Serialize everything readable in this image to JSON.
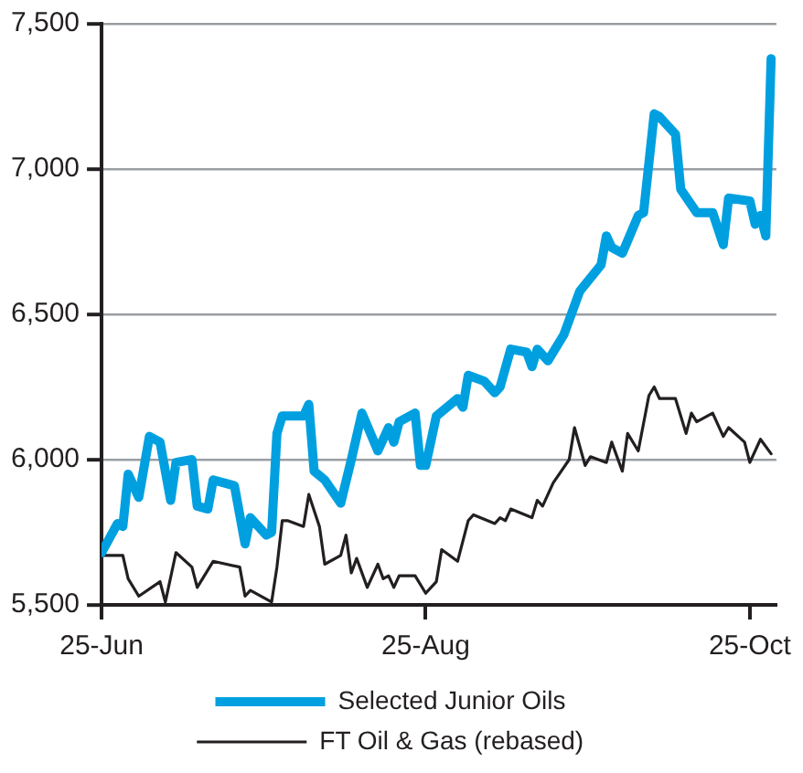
{
  "chart_data": {
    "type": "line",
    "x": [
      "--06-25",
      "--06-28",
      "--06-29",
      "--06-30",
      "--07-02",
      "--07-04",
      "--07-06",
      "--07-08",
      "--07-09",
      "--07-12",
      "--07-13",
      "--07-15",
      "--07-16",
      "--07-20",
      "--07-21",
      "--07-22",
      "--07-23",
      "--07-26",
      "--07-27",
      "--07-28",
      "--07-29",
      "--08-02",
      "--08-03",
      "--08-04",
      "--08-06",
      "--08-09",
      "--08-11",
      "--08-13",
      "--08-16",
      "--08-18",
      "--08-19",
      "--08-20",
      "--08-23",
      "--08-24",
      "--08-25",
      "--08-27",
      "--08-31",
      "--09-01",
      "--09-02",
      "--09-05",
      "--09-07",
      "--09-08",
      "--09-10",
      "--09-13",
      "--09-14",
      "--09-15",
      "--09-17",
      "--09-20",
      "--09-23",
      "--09-27",
      "--09-28",
      "--09-29",
      "--10-01",
      "--10-04",
      "--10-05",
      "--10-07",
      "--10-08",
      "--10-11",
      "--10-12",
      "--10-15",
      "--10-18",
      "--10-20",
      "--10-21",
      "--10-25",
      "--10-26",
      "--10-27",
      "--10-28",
      "--10-29"
    ],
    "series": [
      {
        "name": "Selected Junior Oils",
        "color": "#00a0e0",
        "values": [
          5680,
          5780,
          5770,
          5950,
          5870,
          6080,
          6060,
          5860,
          5990,
          6000,
          5840,
          5830,
          5930,
          5910,
          5810,
          5710,
          5800,
          5740,
          5750,
          6090,
          6150,
          6150,
          6190,
          5960,
          5930,
          5850,
          6000,
          6160,
          6030,
          6110,
          6060,
          6130,
          6160,
          5980,
          5980,
          6150,
          6210,
          6180,
          6290,
          6270,
          6230,
          6250,
          6380,
          6370,
          6320,
          6380,
          6340,
          6430,
          6580,
          6670,
          6770,
          6730,
          6710,
          6840,
          6850,
          7190,
          7180,
          7120,
          6930,
          6850,
          6850,
          6740,
          6900,
          6890,
          6810,
          6840,
          6770,
          7380
        ]
      },
      {
        "name": "FT Oil & Gas (rebased)",
        "color": "#231f20",
        "x": [
          "--06-25",
          "--06-29",
          "--06-30",
          "--07-02",
          "--07-06",
          "--07-07",
          "--07-09",
          "--07-12",
          "--07-13",
          "--07-16",
          "--07-21",
          "--07-22",
          "--07-23",
          "--07-27",
          "--07-28",
          "--07-29",
          "--07-30",
          "--08-02",
          "--08-03",
          "--08-05",
          "--08-06",
          "--08-09",
          "--08-10",
          "--08-11",
          "--08-12",
          "--08-14",
          "--08-16",
          "--08-17",
          "--08-18",
          "--08-19",
          "--08-20",
          "--08-23",
          "--08-25",
          "--08-27",
          "--08-28",
          "--08-31",
          "--09-02",
          "--09-03",
          "--09-07",
          "--09-08",
          "--09-09",
          "--09-10",
          "--09-14",
          "--09-15",
          "--09-16",
          "--09-18",
          "--09-21",
          "--09-22",
          "--09-24",
          "--09-25",
          "--09-28",
          "--09-29",
          "--10-01",
          "--10-02",
          "--10-04",
          "--10-06",
          "--10-07",
          "--10-08",
          "--10-11",
          "--10-13",
          "--10-14",
          "--10-15",
          "--10-18",
          "--10-20",
          "--10-21",
          "--10-24",
          "--10-25",
          "--10-27",
          "--10-29"
        ],
        "values": [
          5670,
          5670,
          5590,
          5530,
          5580,
          5510,
          5680,
          5630,
          5560,
          5650,
          5630,
          5530,
          5550,
          5510,
          5630,
          5790,
          5790,
          5770,
          5880,
          5770,
          5640,
          5670,
          5740,
          5610,
          5660,
          5560,
          5640,
          5590,
          5600,
          5560,
          5600,
          5600,
          5540,
          5580,
          5690,
          5650,
          5790,
          5810,
          5780,
          5800,
          5790,
          5830,
          5800,
          5860,
          5840,
          5920,
          6000,
          6110,
          5980,
          6010,
          5990,
          6060,
          5960,
          6090,
          6030,
          6220,
          6250,
          6210,
          6210,
          6090,
          6160,
          6130,
          6160,
          6080,
          6110,
          6060,
          5990,
          6070,
          6020
        ]
      }
    ],
    "xlim": [
      "--06-25",
      "--10-30"
    ],
    "xticks": [
      {
        "value": "--06-25",
        "label": "25-Jun"
      },
      {
        "value": "--08-25",
        "label": "25-Aug"
      },
      {
        "value": "--10-25",
        "label": "25-Oct"
      }
    ],
    "ylim": [
      5500,
      7500
    ],
    "yticks": [
      {
        "value": 5500,
        "label": "5,500"
      },
      {
        "value": 6000,
        "label": "6,000"
      },
      {
        "value": 6500,
        "label": "6,500"
      },
      {
        "value": 7000,
        "label": "7,000"
      },
      {
        "value": 7500,
        "label": "7,500"
      }
    ],
    "grid": "y",
    "legend": "bottom",
    "marker": "none",
    "line_style": "solid"
  }
}
